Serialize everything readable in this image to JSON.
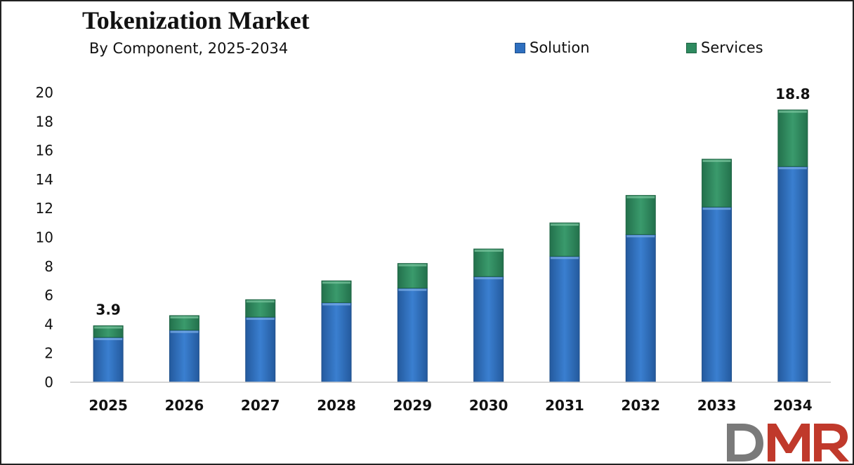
{
  "chart_data": {
    "type": "bar",
    "stacked": true,
    "title": "Tokenization Market",
    "subtitle": "By Component, 2025-2034",
    "categories": [
      "2025",
      "2026",
      "2027",
      "2028",
      "2029",
      "2030",
      "2031",
      "2032",
      "2033",
      "2034"
    ],
    "series": [
      {
        "name": "Solution",
        "color": "#2e6fbf",
        "values": [
          3.1,
          3.6,
          4.5,
          5.5,
          6.5,
          7.3,
          8.7,
          10.2,
          12.1,
          14.9
        ]
      },
      {
        "name": "Services",
        "color": "#2e8a5f",
        "values": [
          0.8,
          1.0,
          1.2,
          1.5,
          1.7,
          1.9,
          2.3,
          2.7,
          3.3,
          3.9
        ]
      }
    ],
    "ylim": [
      0,
      20
    ],
    "yticks": [
      0,
      2,
      4,
      6,
      8,
      10,
      12,
      14,
      16,
      18,
      20
    ],
    "xlabel": "",
    "ylabel": "",
    "grid": false,
    "legend_position": "top-right",
    "data_labels": [
      {
        "category": "2025",
        "text": "3.9",
        "value": 3.9
      },
      {
        "category": "2034",
        "text": "18.8",
        "value": 18.8
      }
    ]
  },
  "logo": {
    "text": "DMR",
    "color_d": "#7a7a7a",
    "color_mr": "#c0392b"
  }
}
